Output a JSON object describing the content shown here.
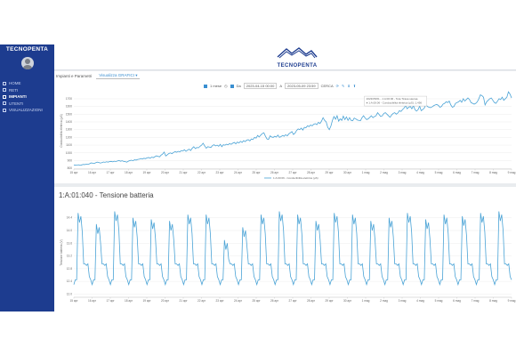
{
  "sidebar": {
    "brand": "TECNOPENTA",
    "items": [
      {
        "label": "HOME",
        "active": false
      },
      {
        "label": "RETI",
        "active": false
      },
      {
        "label": "IMPIANTI",
        "active": true
      },
      {
        "label": "UTENTI",
        "active": false
      },
      {
        "label": "VISUALIZZAZIONI",
        "active": false
      }
    ]
  },
  "header": {
    "logo_text": "TECNOPENTA"
  },
  "controls": {
    "label": "Impianti e Parametri",
    "select_value": "Visualizza GRAFICI",
    "range": "1 mese",
    "from": "Da",
    "from_value": "2023-04-15 00:00",
    "to": "A",
    "to_value": "2023-05-09 23:59",
    "apply": "CERCA"
  },
  "colors": {
    "sidebar": "#1d3c8f",
    "line": "#4aa3d6",
    "accent": "#3a8fd1"
  },
  "chart_data": [
    {
      "type": "line",
      "title": "",
      "ylabel": "Conducibilità elettrica (µS)",
      "legend": "1:A:00:06 - Conducibilità elettrica (µS)",
      "x_ticks": [
        "15 apr",
        "16 apr",
        "17 apr",
        "18 apr",
        "19 apr",
        "20 apr",
        "21 apr",
        "22 apr",
        "23 apr",
        "24 apr",
        "25 apr",
        "26 apr",
        "27 apr",
        "28 apr",
        "29 apr",
        "30 apr",
        "1 mag",
        "2 mag",
        "3 mag",
        "4 mag",
        "5 mag",
        "6 mag",
        "7 mag",
        "8 mag",
        "9 mag"
      ],
      "y_ticks": [
        800,
        900,
        1000,
        1100,
        1200,
        1300,
        1400,
        1500,
        1600,
        1700
      ],
      "ylim": [
        790,
        1780
      ],
      "tooltip": [
        "2023/05/01 - 1:A:00:06 - Tota Tirasa sauraa",
        "● 1:A:00:06 - Conducibilità elettrica (µS): 1,456"
      ],
      "series": [
        {
          "values": [
            845,
            840,
            842,
            846,
            838,
            844,
            850,
            848,
            855,
            852,
            858,
            870,
            868,
            862,
            872,
            880,
            876,
            868,
            874,
            882,
            878,
            885,
            880,
            888,
            890,
            884,
            892,
            888,
            895,
            900,
            892,
            898,
            890,
            886,
            880,
            892,
            900,
            905,
            898,
            910,
            906,
            915,
            918,
            926,
            920,
            930,
            925,
            935,
            940,
            930,
            945,
            938,
            950,
            962,
            955,
            948,
            970,
            985,
            1010,
            960,
            975,
            992,
            1000,
            990,
            1005,
            1015,
            1008,
            1020,
            1012,
            1030,
            1025,
            1040,
            1020,
            1035,
            1048,
            1030,
            1060,
            1080,
            1055,
            1070,
            1065,
            1085,
            1100,
            1125,
            1090,
            1060,
            1080,
            1075,
            1070,
            1095,
            1105,
            1090,
            1100,
            1085,
            1110,
            1080,
            1105,
            1098,
            1112,
            1105,
            1120,
            1110,
            1125,
            1135,
            1118,
            1140,
            1128,
            1150,
            1135,
            1158,
            1145,
            1165,
            1170,
            1155,
            1180,
            1172,
            1200,
            1190,
            1225,
            1205,
            1230,
            1250,
            1260,
            1215,
            1180,
            1175,
            1220,
            1205,
            1200,
            1215,
            1205,
            1230,
            1200,
            1210,
            1225,
            1215,
            1235,
            1220,
            1245,
            1260,
            1275,
            1238,
            1255,
            1290,
            1310,
            1300,
            1320,
            1295,
            1330,
            1325,
            1350,
            1340,
            1360,
            1350,
            1370,
            1378,
            1365,
            1395,
            1380,
            1410,
            1455,
            1420,
            1400,
            1330,
            1300,
            1345,
            1420,
            1470,
            1435,
            1480,
            1410,
            1440,
            1420,
            1475,
            1430,
            1465,
            1420,
            1455,
            1420,
            1415,
            1450,
            1440,
            1425,
            1420,
            1415,
            1455,
            1480,
            1450,
            1430,
            1440,
            1460,
            1480,
            1455,
            1470,
            1480,
            1520,
            1495,
            1470,
            1480,
            1510,
            1520,
            1500,
            1480,
            1460,
            1490,
            1510,
            1520,
            1500,
            1515,
            1545,
            1535,
            1560,
            1580,
            1610,
            1570,
            1590,
            1600,
            1570,
            1610,
            1560,
            1540,
            1560,
            1605,
            1545,
            1560,
            1580,
            1625,
            1600,
            1590,
            1585,
            1595,
            1610,
            1620,
            1625,
            1615,
            1590,
            1600,
            1630,
            1640,
            1660,
            1650,
            1670,
            1620,
            1590,
            1600,
            1640,
            1650,
            1660,
            1680,
            1655,
            1700,
            1670,
            1690,
            1710,
            1690,
            1650,
            1640,
            1630,
            1640,
            1660,
            1700,
            1750,
            1740,
            1720,
            1620,
            1660,
            1680,
            1700,
            1710,
            1680,
            1650,
            1640,
            1670,
            1700,
            1690,
            1720,
            1680,
            1700,
            1720,
            1790,
            1760,
            1710
          ]
        }
      ]
    },
    {
      "type": "line",
      "title": "1:A:01:040 - Tensione batteria",
      "ylabel": "Tensione batteria (V)",
      "x_ticks": [
        "15 apr",
        "16 apr",
        "17 apr",
        "18 apr",
        "19 apr",
        "20 apr",
        "21 apr",
        "22 apr",
        "23 apr",
        "24 apr",
        "25 apr",
        "26 apr",
        "27 apr",
        "28 apr",
        "29 apr",
        "30 apr",
        "1 mag",
        "2 mag",
        "3 mag",
        "4 mag",
        "5 mag",
        "6 mag",
        "7 mag",
        "8 mag",
        "9 mag"
      ],
      "y_ticks": [
        12.0,
        12.4,
        12.8,
        13.2,
        13.6,
        14.0,
        14.4
      ],
      "ylim": [
        11.9,
        14.7
      ],
      "day_cycle": {
        "days": 24,
        "base": 12.45,
        "plateau": 12.95,
        "peaks": [
          14.55,
          14.2,
          14.6,
          14.4,
          14.35,
          14.3,
          14.5,
          14.5,
          13.7,
          14.1,
          14.5,
          14.6,
          14.5,
          14.3,
          14.55,
          14.5,
          14.3,
          14.4,
          14.55,
          14.35,
          14.5,
          14.45,
          14.55,
          14.6
        ],
        "night_min": 12.3
      }
    }
  ]
}
